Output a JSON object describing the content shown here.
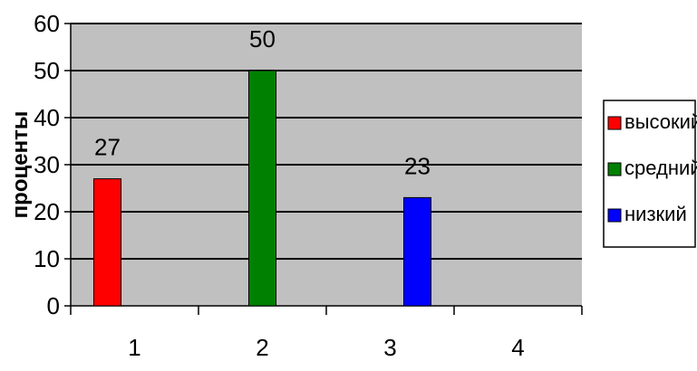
{
  "chart_data": {
    "type": "bar",
    "categories": [
      "1",
      "2",
      "3",
      "4"
    ],
    "ylabel": "проценты",
    "xlabel": "",
    "ylim": [
      0,
      60
    ],
    "yticks": [
      0,
      10,
      20,
      30,
      40,
      50,
      60
    ],
    "grid": true,
    "legend_position": "right",
    "plot_background": "#c0c0c0",
    "series": [
      {
        "name": "высокий",
        "color": "#ff0000",
        "values": [
          27,
          null,
          null,
          null
        ]
      },
      {
        "name": "средний",
        "color": "#008000",
        "values": [
          null,
          50,
          null,
          null
        ]
      },
      {
        "name": "низкий",
        "color": "#0000ff",
        "values": [
          null,
          null,
          23,
          null
        ]
      }
    ]
  }
}
